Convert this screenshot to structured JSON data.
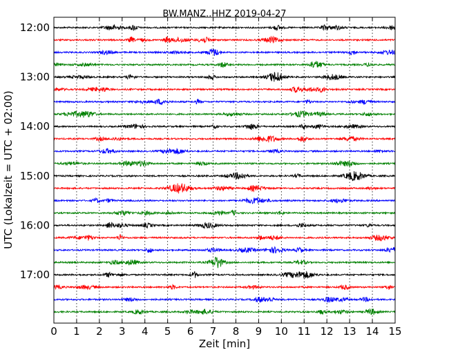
{
  "chart_data": {
    "type": "line",
    "title": "BW.MANZ..HHZ 2019-04-27",
    "xlabel": "Zeit  [min]",
    "ylabel": "UTC (Lokalzeit = UTC + 02:00)",
    "xlim": [
      0,
      15
    ],
    "x_ticks": [
      "0",
      "1",
      "2",
      "3",
      "4",
      "5",
      "6",
      "7",
      "8",
      "9",
      "10",
      "11",
      "12",
      "13",
      "14",
      "15"
    ],
    "y_ticks": [
      "12:00",
      "13:00",
      "14:00",
      "15:00",
      "16:00",
      "17:00"
    ],
    "grid": "vertical dotted",
    "trace_colors": [
      "#000000",
      "#ff0000",
      "#0000ff",
      "#008000"
    ],
    "traces": [
      {
        "start": "12:00",
        "color": "#000000"
      },
      {
        "start": "12:15",
        "color": "#ff0000"
      },
      {
        "start": "12:30",
        "color": "#0000ff"
      },
      {
        "start": "12:45",
        "color": "#008000"
      },
      {
        "start": "13:00",
        "color": "#000000"
      },
      {
        "start": "13:15",
        "color": "#ff0000"
      },
      {
        "start": "13:30",
        "color": "#0000ff"
      },
      {
        "start": "13:45",
        "color": "#008000"
      },
      {
        "start": "14:00",
        "color": "#000000"
      },
      {
        "start": "14:15",
        "color": "#ff0000"
      },
      {
        "start": "14:30",
        "color": "#0000ff"
      },
      {
        "start": "14:45",
        "color": "#008000"
      },
      {
        "start": "15:00",
        "color": "#000000"
      },
      {
        "start": "15:15",
        "color": "#ff0000"
      },
      {
        "start": "15:30",
        "color": "#0000ff"
      },
      {
        "start": "15:45",
        "color": "#008000"
      },
      {
        "start": "16:00",
        "color": "#000000"
      },
      {
        "start": "16:15",
        "color": "#ff0000"
      },
      {
        "start": "16:30",
        "color": "#0000ff"
      },
      {
        "start": "16:45",
        "color": "#008000"
      },
      {
        "start": "17:00",
        "color": "#000000"
      },
      {
        "start": "17:15",
        "color": "#ff0000"
      },
      {
        "start": "17:30",
        "color": "#0000ff"
      },
      {
        "start": "17:45",
        "color": "#008000"
      }
    ]
  }
}
